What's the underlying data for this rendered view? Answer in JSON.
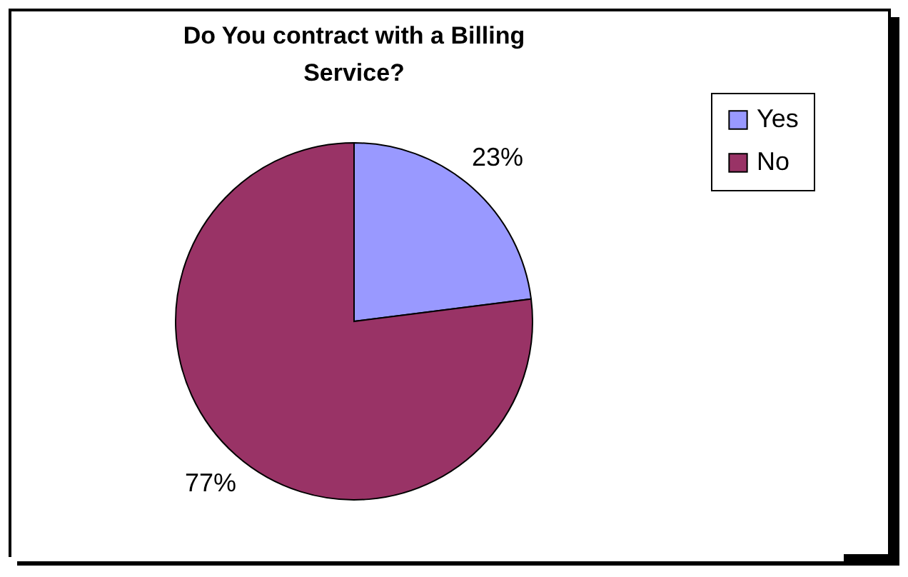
{
  "chart_data": {
    "type": "pie",
    "title": "Do You contract with a Billing Service?",
    "categories": [
      "Yes",
      "No"
    ],
    "values": [
      23,
      77
    ],
    "colors": [
      "#9999ff",
      "#993366"
    ],
    "value_labels": [
      "23%",
      "77%"
    ],
    "legend": "right"
  }
}
